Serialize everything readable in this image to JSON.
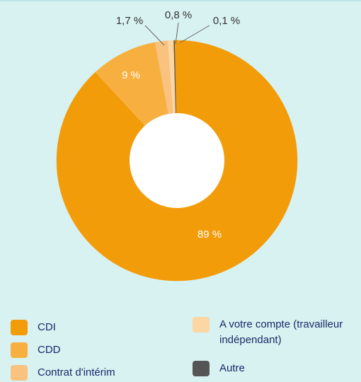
{
  "chart_data": {
    "type": "donut",
    "series": [
      {
        "name": "CDI",
        "color": "#f39c0a",
        "values": [
          89
        ],
        "value_labels": [
          "89 %"
        ]
      },
      {
        "name": "CDD",
        "color": "#f7b040",
        "values": [
          9
        ],
        "value_labels": [
          "9 %"
        ]
      },
      {
        "name": "Contrat d'intérim",
        "color": "#f9c27f",
        "values": [
          1.7
        ],
        "value_labels": [
          "1,7 %"
        ]
      },
      {
        "name": "A votre compte (travailleur indépendant)",
        "color": "#fcd6a3",
        "values": [
          0.8
        ],
        "value_labels": [
          "0,8 %"
        ]
      },
      {
        "name": "Autre",
        "color": "#555555",
        "values": [
          0.1
        ],
        "value_labels": [
          "0,1 %"
        ]
      }
    ]
  }
}
